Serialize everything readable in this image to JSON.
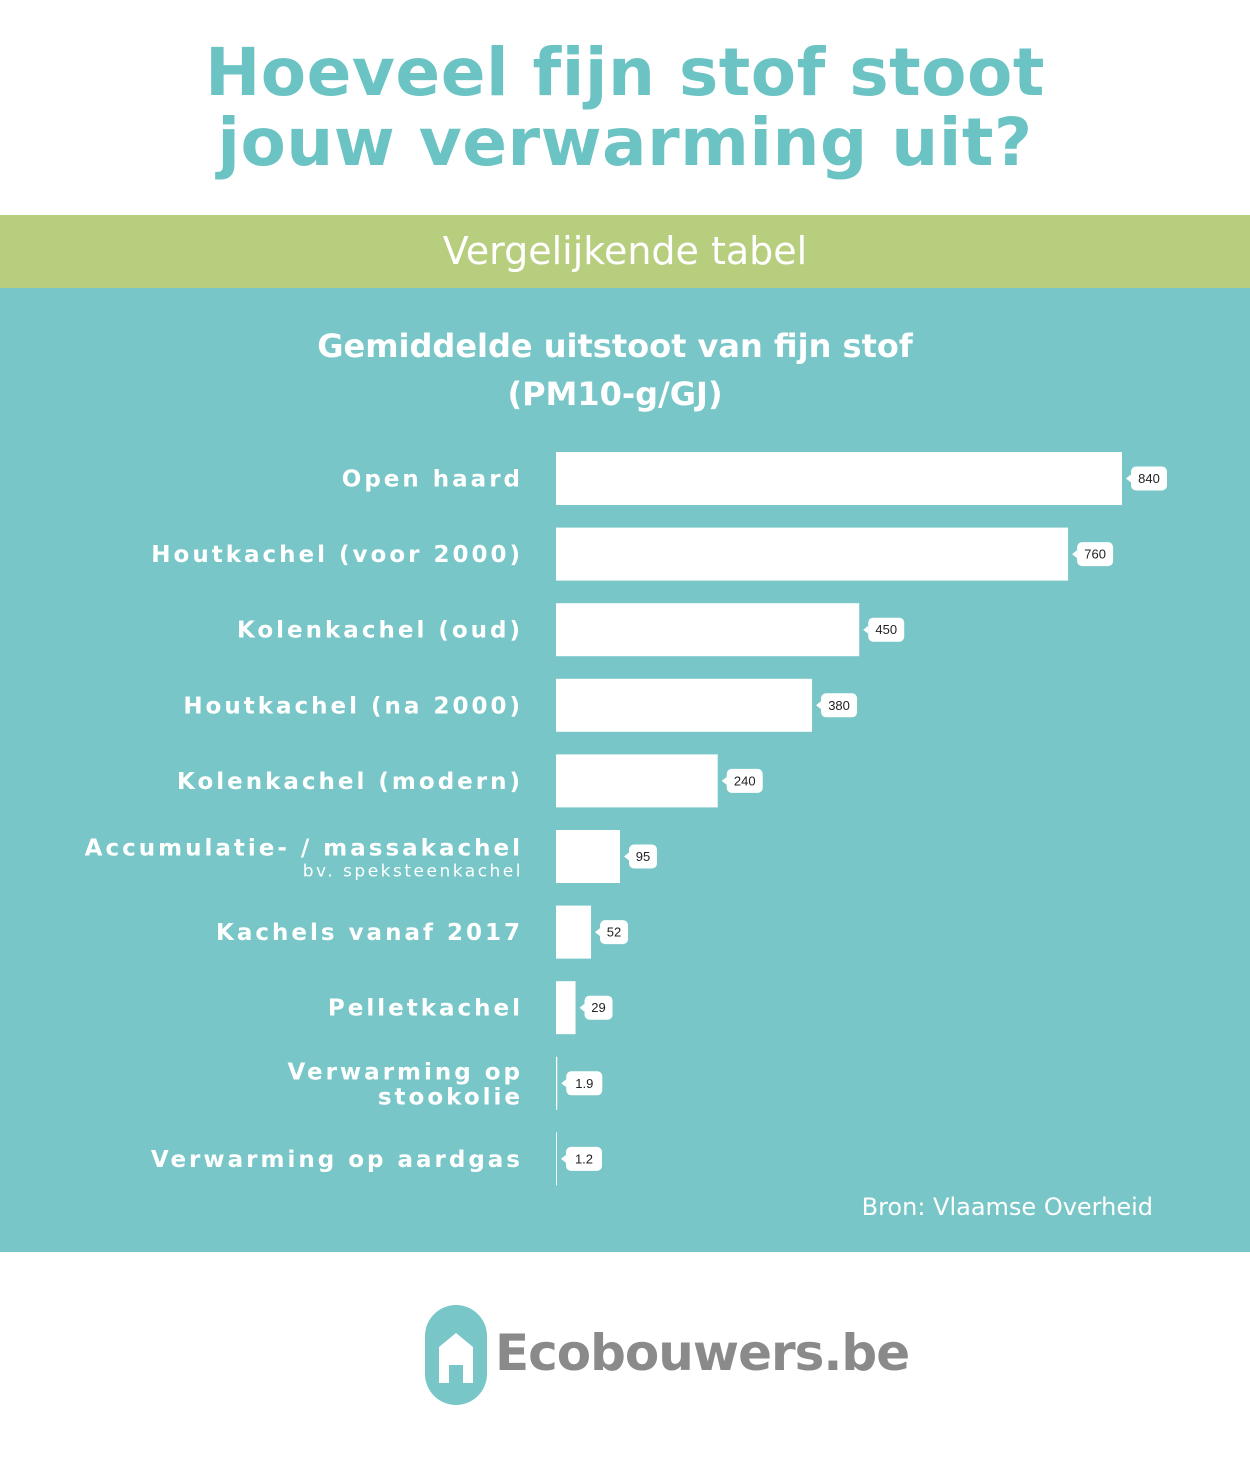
{
  "header": {
    "title_line1": "Hoeveel fijn stof stoot",
    "title_line2": "jouw verwarming uit?"
  },
  "band": {
    "text": "Vergelijkende tabel"
  },
  "colors": {
    "title": "#6cc3c4",
    "band": "#b8ce7f",
    "panel": "#78c6c7",
    "bar": "#ffffff",
    "logo_text": "#8a8a8a"
  },
  "chart_data": {
    "type": "bar",
    "orientation": "horizontal",
    "title_line1": "Gemiddelde uitstoot van fijn stof",
    "title_line2": "(PM10-g/GJ)",
    "categories": [
      {
        "label": "Open haard",
        "sublabel": ""
      },
      {
        "label": "Houtkachel (voor 2000)",
        "sublabel": ""
      },
      {
        "label": "Kolenkachel (oud)",
        "sublabel": ""
      },
      {
        "label": "Houtkachel (na 2000)",
        "sublabel": ""
      },
      {
        "label": "Kolenkachel (modern)",
        "sublabel": ""
      },
      {
        "label": "Accumulatie- / massakachel",
        "sublabel": "bv. speksteenkachel"
      },
      {
        "label": "Kachels vanaf 2017",
        "sublabel": ""
      },
      {
        "label": "Pelletkachel",
        "sublabel": ""
      },
      {
        "label": "Verwarming op stookolie",
        "sublabel": ""
      },
      {
        "label": "Verwarming op aardgas",
        "sublabel": ""
      }
    ],
    "values": [
      840,
      760,
      450,
      380,
      240,
      95,
      52,
      29,
      1.9,
      1.2
    ],
    "value_labels": [
      "840",
      "760",
      "450",
      "380",
      "240",
      "95",
      "52",
      "29",
      "1.9",
      "1.2"
    ],
    "xlim": [
      0,
      840
    ],
    "grid": false,
    "legend": "none"
  },
  "source": "Bron: Vlaamse Overheid",
  "logo": {
    "text": "Ecobouwers.be",
    "icon": "house-icon"
  }
}
